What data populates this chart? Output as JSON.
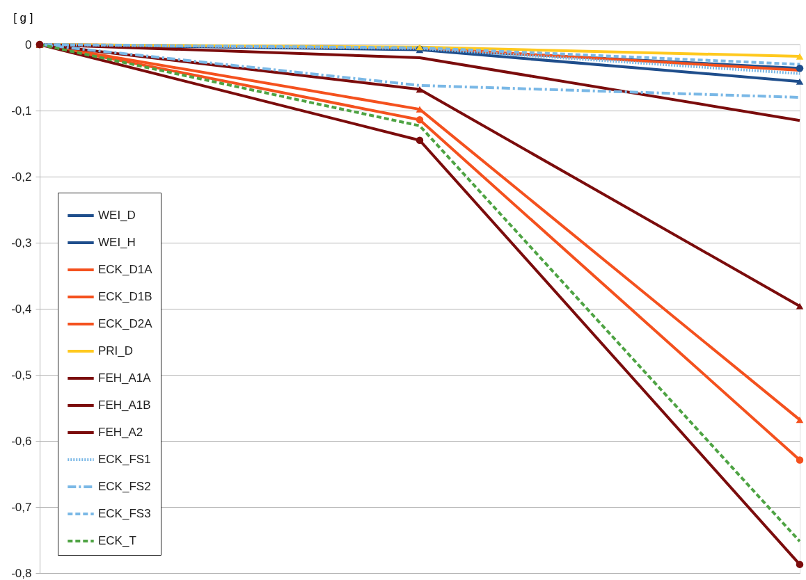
{
  "chart_data": {
    "type": "line",
    "ylabel": "[ g ]",
    "categories": [
      null,
      null,
      null
    ],
    "ylim": [
      -0.8,
      0
    ],
    "yticks": [
      {
        "value": 0,
        "label": "0"
      },
      {
        "value": -0.1,
        "label": "-0,1"
      },
      {
        "value": -0.2,
        "label": "-0,2"
      },
      {
        "value": -0.3,
        "label": "-0,3"
      },
      {
        "value": -0.4,
        "label": "-0,4"
      },
      {
        "value": -0.5,
        "label": "-0,5"
      },
      {
        "value": -0.6,
        "label": "-0,6"
      },
      {
        "value": -0.7,
        "label": "-0,7"
      },
      {
        "value": -0.8,
        "label": "-0,8"
      }
    ],
    "grid": "y",
    "legend": "bottom left",
    "tick_labels": "y",
    "series": [
      {
        "name": "WEI_D",
        "color": "#1f4e8c",
        "marker": "triangle",
        "line_style": "solid",
        "values": [
          0,
          -0.008,
          -0.056
        ]
      },
      {
        "name": "WEI_H",
        "color": "#1f4e8c",
        "marker": "circle",
        "line_style": "solid",
        "values": [
          0,
          -0.007,
          -0.036
        ]
      },
      {
        "name": "ECK_D1A",
        "color": "#f4511e",
        "marker": "triangle",
        "line_style": "solid",
        "values": [
          0,
          -0.098,
          -0.568
        ]
      },
      {
        "name": "ECK_D1B",
        "color": "#f4511e",
        "marker": "none",
        "line_style": "solid",
        "values": [
          0,
          -0.005,
          -0.039
        ]
      },
      {
        "name": "ECK_D2A",
        "color": "#f4511e",
        "marker": "circle",
        "line_style": "solid",
        "values": [
          0,
          -0.114,
          -0.629
        ]
      },
      {
        "name": "PRI_D",
        "color": "#ffc91f",
        "marker": "triangle",
        "line_style": "solid",
        "values": [
          0,
          -0.004,
          -0.018
        ]
      },
      {
        "name": "FEH_A1A",
        "color": "#7b0c0c",
        "marker": "triangle",
        "line_style": "solid",
        "values": [
          0,
          -0.068,
          -0.396
        ]
      },
      {
        "name": "FEH_A1B",
        "color": "#7b0c0c",
        "marker": "none",
        "line_style": "solid",
        "values": [
          0,
          -0.02,
          -0.115
        ]
      },
      {
        "name": "FEH_A2",
        "color": "#7b0c0c",
        "marker": "circle",
        "line_style": "solid",
        "values": [
          0,
          -0.145,
          -0.787
        ]
      },
      {
        "name": "ECK_FS1",
        "color": "#7ab8e6",
        "marker": "none",
        "line_style": "dotted",
        "values": [
          0,
          -0.006,
          -0.044
        ]
      },
      {
        "name": "ECK_FS2",
        "color": "#7ab8e6",
        "marker": "none",
        "line_style": "dashdot",
        "values": [
          0,
          -0.062,
          -0.08
        ]
      },
      {
        "name": "ECK_FS3",
        "color": "#7ab8e6",
        "marker": "none",
        "line_style": "dashed",
        "values": [
          0,
          -0.005,
          -0.03
        ]
      },
      {
        "name": "ECK_T",
        "color": "#4ea343",
        "marker": "none",
        "line_style": "dashed",
        "values": [
          0,
          -0.123,
          -0.752
        ]
      }
    ]
  }
}
